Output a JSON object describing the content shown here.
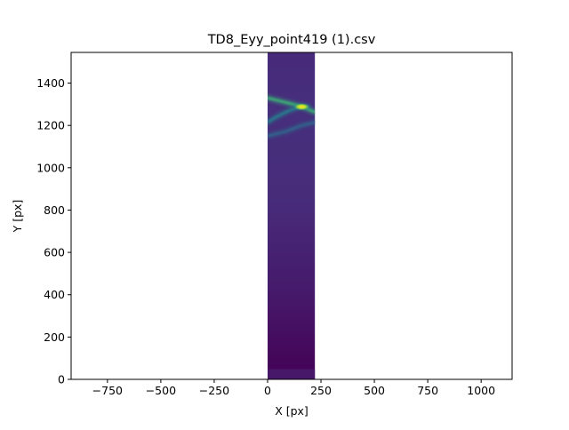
{
  "chart_data": {
    "type": "heatmap",
    "title": "TD8_Eyy_point419 (1).csv",
    "xlabel": "X [px]",
    "ylabel": "Y [px]",
    "xlim": [
      -920,
      1145
    ],
    "ylim": [
      0,
      1545
    ],
    "xticks": [
      -750,
      -500,
      -250,
      0,
      250,
      500,
      750,
      1000
    ],
    "xtick_labels": [
      "−750",
      "−500",
      "−250",
      "0",
      "250",
      "500",
      "750",
      "1000"
    ],
    "yticks": [
      0,
      200,
      400,
      600,
      800,
      1000,
      1200,
      1400
    ],
    "ytick_labels": [
      "0",
      "200",
      "400",
      "600",
      "800",
      "1000",
      "1200",
      "1400"
    ],
    "data_extent": {
      "x": [
        0,
        222
      ],
      "y": [
        0,
        1545
      ]
    },
    "colormap": "viridis",
    "grid": false,
    "background_color": "#440154",
    "features": [
      {
        "x": [
          0,
          60,
          120,
          165,
          222
        ],
        "y": [
          1330,
          1315,
          1300,
          1288,
          1262
        ],
        "intensity": 0.8
      },
      {
        "x": [
          0,
          40,
          90,
          140,
          190
        ],
        "y": [
          1215,
          1240,
          1265,
          1285,
          1290
        ],
        "intensity": 0.55
      },
      {
        "x": [
          0,
          80,
          160,
          222
        ],
        "y": [
          1150,
          1170,
          1200,
          1215
        ],
        "intensity": 0.22
      }
    ],
    "hotspot": {
      "x": 160,
      "y": 1288,
      "intensity": 1.0
    }
  }
}
